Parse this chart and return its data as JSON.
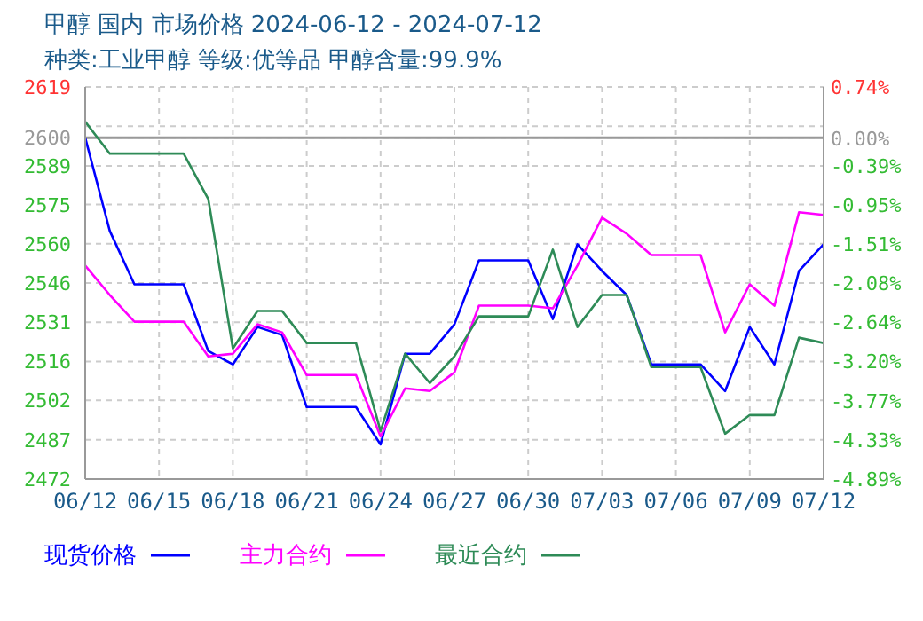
{
  "chart_data": {
    "type": "line",
    "title": "甲醇  国内  市场价格  2024-06-12 - 2024-07-12",
    "subtitle": "种类:工业甲醇  等级:优等品  甲醇含量:99.9%",
    "x": [
      "2024-06-12",
      "2024-06-13",
      "2024-06-14",
      "2024-06-15",
      "2024-06-16",
      "2024-06-17",
      "2024-06-18",
      "2024-06-19",
      "2024-06-20",
      "2024-06-21",
      "2024-06-22",
      "2024-06-23",
      "2024-06-24",
      "2024-06-25",
      "2024-06-26",
      "2024-06-27",
      "2024-06-28",
      "2024-06-29",
      "2024-06-30",
      "2024-07-01",
      "2024-07-02",
      "2024-07-03",
      "2024-07-04",
      "2024-07-05",
      "2024-07-06",
      "2024-07-07",
      "2024-07-08",
      "2024-07-09",
      "2024-07-10",
      "2024-07-11",
      "2024-07-12"
    ],
    "series": [
      {
        "name": "现货价格",
        "color": "#0000ff",
        "values": [
          2600,
          2565,
          2545,
          2545,
          2545,
          2520,
          2515,
          2529,
          2526,
          2499,
          2499,
          2499,
          2485,
          2519,
          2519,
          2530,
          2554,
          2554,
          2554,
          2532,
          2560,
          2550,
          2541,
          2515,
          2515,
          2515,
          2505,
          2529,
          2515,
          2550,
          2560
        ]
      },
      {
        "name": "主力合约",
        "color": "#ff00ff",
        "values": [
          2552,
          2541,
          2531,
          2531,
          2531,
          2518,
          2519,
          2530,
          2527,
          2511,
          2511,
          2511,
          2488,
          2506,
          2505,
          2512,
          2537,
          2537,
          2537,
          2536,
          2552,
          2570,
          2564,
          2556,
          2556,
          2556,
          2527,
          2545,
          2537,
          2572,
          2571
        ]
      },
      {
        "name": "最近合约",
        "color": "#2e8b57",
        "values": [
          2606,
          2594,
          2594,
          2594,
          2594,
          2577,
          2521,
          2535,
          2535,
          2523,
          2523,
          2523,
          2490,
          2519,
          2508,
          2518,
          2533,
          2533,
          2533,
          2558,
          2529,
          2541,
          2541,
          2514,
          2514,
          2514,
          2489,
          2496,
          2496,
          2525,
          2523
        ]
      }
    ],
    "xlim": [
      "2024-06-12",
      "2024-07-12"
    ],
    "xticks": [
      {
        "value": "2024-06-12",
        "label": "06/12"
      },
      {
        "value": "2024-06-15",
        "label": "06/15"
      },
      {
        "value": "2024-06-18",
        "label": "06/18"
      },
      {
        "value": "2024-06-21",
        "label": "06/21"
      },
      {
        "value": "2024-06-24",
        "label": "06/24"
      },
      {
        "value": "2024-06-27",
        "label": "06/27"
      },
      {
        "value": "2024-06-30",
        "label": "06/30"
      },
      {
        "value": "2024-07-03",
        "label": "07/03"
      },
      {
        "value": "2024-07-06",
        "label": "07/06"
      },
      {
        "value": "2024-07-09",
        "label": "07/09"
      },
      {
        "value": "2024-07-12",
        "label": "07/12"
      }
    ],
    "ylim": [
      2472,
      2619
    ],
    "yticks": [
      2472,
      {
        "value": 2486.7,
        "label": "2487"
      },
      {
        "value": 2501.5,
        "label": "2502"
      },
      {
        "value": 2516.1,
        "label": "2516"
      },
      {
        "value": 2530.8,
        "label": "2531"
      },
      {
        "value": 2545.5,
        "label": "2546"
      },
      {
        "value": 2560.2,
        "label": "2560"
      },
      {
        "value": 2574.9,
        "label": "2575"
      },
      {
        "value": 2589.4,
        "label": "2589"
      },
      2600,
      {
        "value": 2604.3,
        "label": null
      },
      2619
    ],
    "y2lim": [
      -4.89,
      0.74
    ],
    "y2ticks": [
      {
        "value": -4.89,
        "label": "-4.89%"
      },
      {
        "value": -4.33,
        "label": "-4.33%"
      },
      {
        "value": -3.77,
        "label": "-3.77%"
      },
      {
        "value": -3.2,
        "label": "-3.20%"
      },
      {
        "value": -2.64,
        "label": "-2.64%"
      },
      {
        "value": -2.08,
        "label": "-2.08%"
      },
      {
        "value": -1.51,
        "label": "-1.51%"
      },
      {
        "value": -0.95,
        "label": "-0.95%"
      },
      {
        "value": -0.39,
        "label": "-0.39%"
      },
      {
        "value": 0,
        "label": "0.00%"
      },
      {
        "value": 0.74,
        "label": "0.74%"
      }
    ],
    "ref_lines": [
      {
        "axis": "y",
        "value": 2600,
        "label": null,
        "color": "#999999"
      }
    ],
    "grid": true,
    "legend": "bottom",
    "marker": "none",
    "line_style": "solid"
  }
}
